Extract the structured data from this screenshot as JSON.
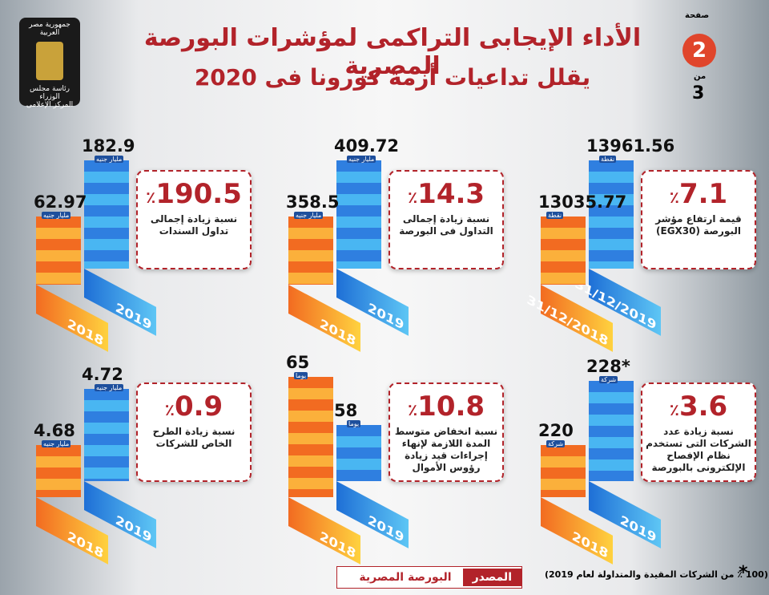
{
  "header": {
    "title": [
      "الأداء الإيجابى التراكمى لمؤشرات البورصة المصرية",
      "يقلل تداعيات أزمة كورونا فى 2020"
    ]
  },
  "page": {
    "label": "صفحة",
    "current": "2",
    "of": "من",
    "total": "3"
  },
  "logo": {
    "lines": [
      "جمهورية مصر العربية",
      "رئاسة مجلس الوزراء",
      "المركز الإعلامى"
    ]
  },
  "panels": [
    {
      "percent": "7.1",
      "sign": "٪",
      "text": [
        "قيمة ارتفاع مؤشر",
        "البورصة (EGX30)"
      ],
      "bars": [
        {
          "label": "31/12/2019",
          "value": "13961.56",
          "unit": "نقطة"
        },
        {
          "label": "31/12/2018",
          "value": "13035.77",
          "unit": "نقطة"
        }
      ]
    },
    {
      "percent": "14.3",
      "sign": "٪",
      "text": [
        "نسبة زيادة إجمالى",
        "التداول فى البورصة"
      ],
      "bars": [
        {
          "label": "2019",
          "value": "409.72",
          "unit": "مليار جنيه"
        },
        {
          "label": "2018",
          "value": "358.5",
          "unit": "مليار جنيه"
        }
      ]
    },
    {
      "percent": "190.5",
      "sign": "٪",
      "text": [
        "نسبة زيادة إجمالى",
        "تداول السندات"
      ],
      "bars": [
        {
          "label": "2019",
          "value": "182.9",
          "unit": "مليار جنيه"
        },
        {
          "label": "2018",
          "value": "62.97",
          "unit": "مليار جنيه"
        }
      ]
    },
    {
      "percent": "3.6",
      "sign": "٪",
      "text": [
        "نسبة زيادة عدد",
        "الشركات التى تستخدم",
        "نظام الإفصاح",
        "الإلكترونى بالبورصة"
      ],
      "bars": [
        {
          "label": "2019",
          "value": "228*",
          "unit": "شركة"
        },
        {
          "label": "2018",
          "value": "220",
          "unit": "شركة"
        }
      ]
    },
    {
      "percent": "10.8",
      "sign": "٪",
      "text": [
        "نسبة انخفاض متوسط",
        "المدة اللازمة لإنهاء",
        "إجراءات قيد زيادة",
        "رؤوس الأموال"
      ],
      "bars": [
        {
          "label": "2019",
          "value": "58",
          "unit": "يوما"
        },
        {
          "label": "2018",
          "value": "65",
          "unit": "يوما"
        }
      ]
    },
    {
      "percent": "0.9",
      "sign": "٪",
      "text": [
        "نسبة زيادة الطرح",
        "الخاص للشركات"
      ],
      "bars": [
        {
          "label": "2019",
          "value": "4.72",
          "unit": "مليار جنيه"
        },
        {
          "label": "2018",
          "value": "4.68",
          "unit": "مليار جنيه"
        }
      ]
    }
  ],
  "footer": {
    "source_label": "المصدر",
    "source": "البورصة المصرية",
    "star": "*",
    "note": "(100 ٪ من الشركات المقيدة والمتداولة لعام 2019)"
  }
}
